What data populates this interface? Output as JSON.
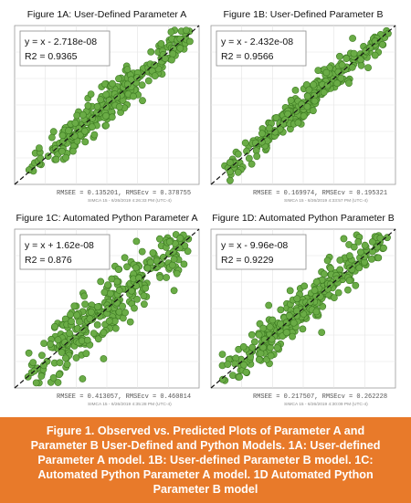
{
  "colors": {
    "point_fill": "#6aac46",
    "point_stroke": "#3d7a22",
    "caption_bg": "#e87a2a",
    "caption_text": "#ffffff"
  },
  "caption": {
    "lines": [
      "Figure 1. Observed vs. Predicted Plots of Parameter A and",
      "Parameter B User-Defined and Python Models. 1A: User-defined",
      "Parameter A model. 1B: User-defined Parameter B model. 1C:",
      "Automated Python Parameter A model. 1D Automated Python",
      "Parameter B model"
    ]
  },
  "chart_data": [
    {
      "type": "scatter",
      "title": "Figure 1A: User-Defined Parameter A",
      "equation": "y = x - 2.718e-08",
      "r2": "R2 = 0.9365",
      "rmse": "RMSEE = 0.135201, RMSEcv = 0.378755",
      "software": "SIMCA 15 - 6/26/2019 4:26:33 PM (UTC-4)",
      "r2_value": 0.9365,
      "n_points": 300,
      "spread": 0.055,
      "xlim": [
        0,
        1
      ],
      "ylim": [
        0,
        1
      ],
      "grid": true,
      "fit_line": "dashed diagonal y = x"
    },
    {
      "type": "scatter",
      "title": "Figure 1B: User-Defined Parameter B",
      "equation": "y = x - 2.432e-08",
      "r2": "R2 = 0.9566",
      "rmse": "RMSEE = 0.169974, RMSEcv = 0.195321",
      "software": "SIMCA 15 - 6/26/2019 4:33:57 PM (UTC-4)",
      "r2_value": 0.9566,
      "n_points": 300,
      "spread": 0.045,
      "xlim": [
        0,
        1
      ],
      "ylim": [
        0,
        1
      ],
      "grid": true,
      "fit_line": "dashed diagonal y = x"
    },
    {
      "type": "scatter",
      "title": "Figure 1C: Automated Python Parameter A",
      "equation": "y = x + 1.62e-08",
      "r2": "R2 = 0.876",
      "rmse": "RMSEE = 0.413057, RMSEcv = 0.460814",
      "software": "SIMCA 15 - 6/26/2019 4:35:28 PM (UTC-4)",
      "r2_value": 0.876,
      "n_points": 320,
      "spread": 0.085,
      "xlim": [
        0,
        1
      ],
      "ylim": [
        0,
        1
      ],
      "grid": true,
      "fit_line": "dashed diagonal y = x"
    },
    {
      "type": "scatter",
      "title": "Figure 1D: Automated Python Parameter B",
      "equation": "y = x - 9.96e-08",
      "r2": "R2 = 0.9229",
      "rmse": "RMSEE = 0.217507, RMSEcv = 0.262228",
      "software": "SIMCA 15 - 6/26/2019 4:30:09 PM (UTC-4)",
      "r2_value": 0.9229,
      "n_points": 310,
      "spread": 0.065,
      "xlim": [
        0,
        1
      ],
      "ylim": [
        0,
        1
      ],
      "grid": true,
      "fit_line": "dashed diagonal y = x"
    }
  ]
}
